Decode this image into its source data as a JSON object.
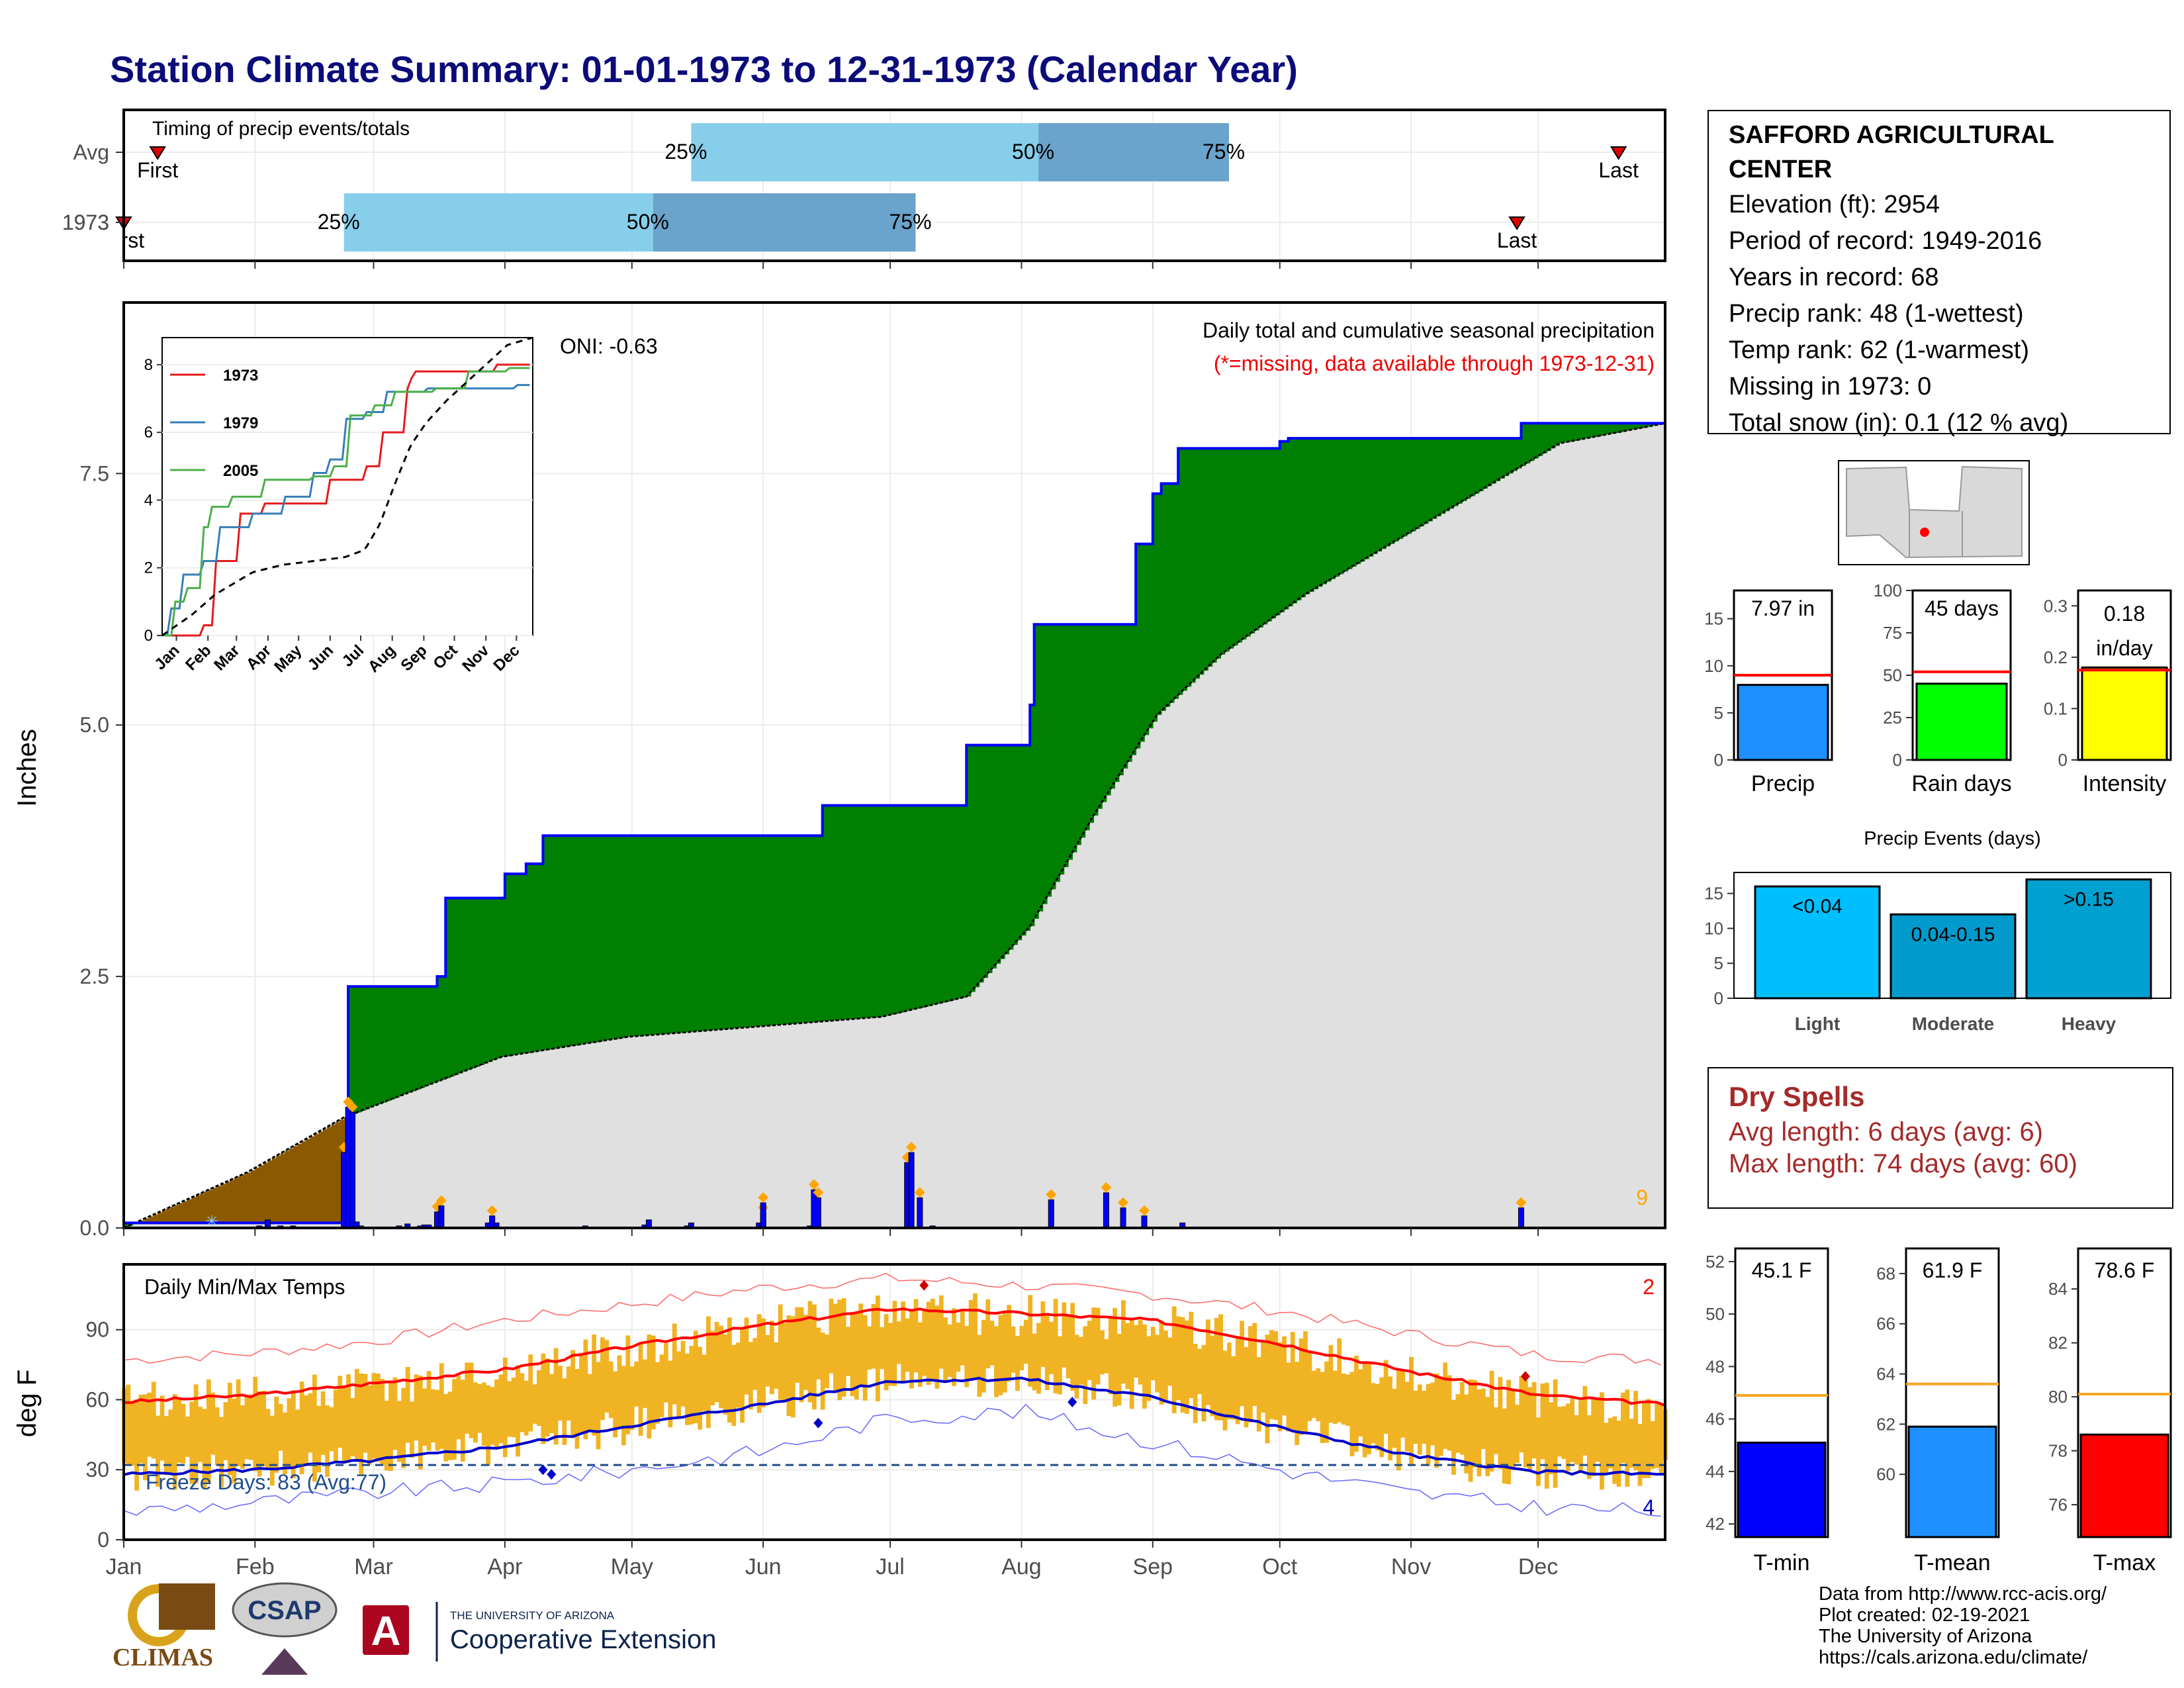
{
  "title": "Station Climate Summary: 01-01-1973 to 12-31-1973 (Calendar Year)",
  "timing": {
    "label": "Timing of precip events/totals",
    "rows": [
      {
        "label": "Avg",
        "first_doy": 9,
        "p25_doy": 135,
        "p50_doy": 217,
        "p75_doy": 262,
        "last_doy": 354,
        "first_label": "First",
        "last_label": "Last"
      },
      {
        "label": "1973",
        "first_doy": 1,
        "p25_doy": 53,
        "p50_doy": 126,
        "p75_doy": 188,
        "last_doy": 330,
        "first_label": "First",
        "last_label": "Last"
      }
    ],
    "pct_labels": [
      "25%",
      "50%",
      "75%"
    ]
  },
  "precip_panel": {
    "ylabel": "Inches",
    "yticks": [
      0.0,
      2.5,
      5.0,
      7.5
    ],
    "ylim": [
      0,
      9.2
    ],
    "oni": "ONI: -0.63",
    "note1": "Daily total and cumulative seasonal precipitation",
    "note2": "(*=missing, data available through 1973-12-31)",
    "corner_count": "9",
    "colors": {
      "wet": "#008000",
      "dry": "#8B5A00",
      "normal": "#e0e0e0",
      "line": "#0000ff",
      "event": "#ffa500"
    }
  },
  "inset": {
    "series": [
      {
        "name": "1973",
        "color": "#e41a1c"
      },
      {
        "name": "1979",
        "color": "#377eb8"
      },
      {
        "name": "2005",
        "color": "#4daf4a"
      }
    ],
    "yticks": [
      0,
      2,
      4,
      6,
      8
    ],
    "months": [
      "Jan",
      "Feb",
      "Mar",
      "Apr",
      "May",
      "Jun",
      "Jul",
      "Aug",
      "Sep",
      "Oct",
      "Nov",
      "Dec"
    ]
  },
  "temp_panel": {
    "label": "Daily Min/Max Temps",
    "ylabel": "deg F",
    "yticks": [
      0,
      30,
      60,
      90
    ],
    "ylim": [
      0,
      118
    ],
    "freeze_text": "Freeze Days: 83 (Avg:77)",
    "freeze_line": 32,
    "top_count": "2",
    "bottom_count": "4"
  },
  "months": [
    "Jan",
    "Feb",
    "Mar",
    "Apr",
    "May",
    "Jun",
    "Jul",
    "Aug",
    "Sep",
    "Oct",
    "Nov",
    "Dec"
  ],
  "station": {
    "name": "SAFFORD AGRICULTURAL CENTER",
    "elevation": "Elevation (ft): 2954",
    "period": "Period of record: 1949-2016",
    "years": "Years in record: 68",
    "precip_rank": "Precip rank: 48 (1-wettest)",
    "temp_rank": "Temp rank: 62 (1-warmest)",
    "missing": "Missing in 1973: 0",
    "snow": "Total snow (in): 0.1 (12 % avg)"
  },
  "mini_bars": [
    {
      "name": "Precip",
      "value": 7.97,
      "label": "7.97 in",
      "avg": 9.0,
      "ymax": 18,
      "ticks": [
        0,
        5,
        10,
        15
      ],
      "color": "#1e90ff",
      "ref_color": "#ff0000"
    },
    {
      "name": "Rain days",
      "value": 45,
      "label": "45 days",
      "avg": 52,
      "ymax": 100,
      "ticks": [
        0,
        25,
        50,
        75,
        100
      ],
      "color": "#00ff00",
      "ref_color": "#ff0000"
    },
    {
      "name": "Intensity",
      "value": 0.18,
      "label": "0.18 in/day",
      "avg": 0.175,
      "ymax": 0.33,
      "ticks": [
        0.0,
        0.1,
        0.2,
        0.3
      ],
      "color": "#ffff00",
      "ref_color": "#ff0000"
    }
  ],
  "events": {
    "title": "Precip Events (days)",
    "ticks": [
      0,
      5,
      10,
      15
    ],
    "bars": [
      {
        "category": "Light",
        "value": 16,
        "label": "<0.04",
        "color": "#00bfff"
      },
      {
        "category": "Moderate",
        "value": 12,
        "label": "0.04-0.15",
        "color": "#009acd"
      },
      {
        "category": "Heavy",
        "value": 17,
        "label": ">0.15",
        "color": "#00a0d0"
      }
    ]
  },
  "dry_spells": {
    "title": "Dry Spells",
    "avg": "Avg length: 6 days (avg: 6)",
    "max": "Max length: 74 days (avg: 60)"
  },
  "temp_bars": [
    {
      "name": "T-min",
      "value": 45.1,
      "label": "45.1 F",
      "avg": 46.9,
      "ylim": [
        41.5,
        52.5
      ],
      "ticks": [
        42,
        44,
        46,
        48,
        50,
        52
      ],
      "color": "#0000ff"
    },
    {
      "name": "T-mean",
      "value": 61.9,
      "label": "61.9 F",
      "avg": 63.6,
      "ylim": [
        57.5,
        69.0
      ],
      "ticks": [
        60,
        62,
        64,
        66,
        68
      ],
      "color": "#1e90ff"
    },
    {
      "name": "T-max",
      "value": 78.6,
      "label": "78.6 F",
      "avg": 80.1,
      "ylim": [
        74.8,
        85.5
      ],
      "ticks": [
        76,
        78,
        80,
        82,
        84
      ],
      "color": "#ff0000"
    }
  ],
  "credits": [
    "Data from http://www.rcc-acis.org/",
    "Plot created: 02-19-2021",
    "The University of Arizona",
    "https://cals.arizona.edu/climate/"
  ],
  "logos": {
    "climas": "CLIMAS",
    "csap": "CSAP",
    "ua_small": "THE UNIVERSITY OF ARIZONA",
    "ua_big": "Cooperative Extension"
  },
  "chart_data": [
    {
      "type": "area",
      "title": "Daily total and cumulative seasonal precipitation",
      "ylabel": "Inches",
      "ylim": [
        0,
        9.2
      ],
      "cumulative_1973": {
        "x_doy": [
          1,
          53,
          54,
          70,
          75,
          77,
          86,
          91,
          96,
          100,
          165,
          166,
          200,
          215,
          216,
          240,
          244,
          246,
          250,
          274,
          276,
          330,
          331,
          365
        ],
        "y": [
          0.05,
          0.05,
          2.4,
          2.4,
          2.5,
          3.28,
          3.28,
          3.52,
          3.62,
          3.9,
          3.9,
          4.2,
          4.8,
          5.2,
          6.0,
          6.8,
          7.3,
          7.4,
          7.75,
          7.82,
          7.85,
          7.85,
          8.0,
          8.0
        ]
      },
      "cumulative_normal": {
        "x_doy": [
          1,
          30,
          53,
          90,
          120,
          150,
          180,
          200,
          215,
          230,
          245,
          260,
          280,
          300,
          320,
          340,
          365
        ],
        "y": [
          0.0,
          0.55,
          1.1,
          1.7,
          1.9,
          2.0,
          2.1,
          2.3,
          3.0,
          4.1,
          5.1,
          5.7,
          6.3,
          6.8,
          7.3,
          7.8,
          8.0
        ]
      },
      "daily_precip": {
        "x_doy": [
          33,
          35,
          38,
          40,
          41,
          43,
          53,
          54,
          55,
          56,
          57,
          66,
          68,
          71,
          72,
          73,
          75,
          76,
          87,
          88,
          89,
          110,
          124,
          125,
          134,
          135,
          151,
          152,
          152,
          163,
          164,
          165,
          186,
          187,
          189,
          192,
          220,
          233,
          237,
          242,
          251,
          331
        ],
        "y": [
          0.02,
          0.08,
          0.02,
          0.01,
          0.02,
          0.01,
          0.75,
          1.2,
          1.15,
          0.06,
          0.02,
          0.02,
          0.04,
          0.02,
          0.03,
          0.03,
          0.16,
          0.22,
          0.05,
          0.12,
          0.05,
          0.02,
          0.03,
          0.08,
          0.02,
          0.05,
          0.05,
          0.15,
          0.25,
          0.02,
          0.38,
          0.3,
          0.65,
          0.75,
          0.3,
          0.02,
          0.28,
          0.35,
          0.2,
          0.12,
          0.05,
          0.2
        ]
      }
    },
    {
      "type": "line",
      "title": "Daily Min/Max Temps",
      "ylabel": "deg F",
      "ylim": [
        0,
        118
      ],
      "normal_max": {
        "x_doy": [
          1,
          32,
          60,
          91,
          121,
          152,
          182,
          213,
          244,
          274,
          305,
          335,
          365
        ],
        "y": [
          59,
          62,
          67,
          73,
          83,
          92,
          99,
          97,
          94,
          84,
          72,
          62,
          58
        ]
      },
      "normal_min": {
        "x_doy": [
          1,
          32,
          60,
          91,
          121,
          152,
          182,
          213,
          244,
          274,
          305,
          335,
          365
        ],
        "y": [
          28,
          30,
          34,
          40,
          49,
          58,
          68,
          69,
          61,
          48,
          36,
          29,
          28
        ]
      },
      "record_high": {
        "x_doy": [
          1,
          32,
          60,
          91,
          121,
          152,
          182,
          213,
          244,
          274,
          305,
          335,
          365
        ],
        "y": [
          77,
          80,
          85,
          94,
          101,
          108,
          112,
          109,
          105,
          98,
          88,
          79,
          77
        ]
      },
      "record_low": {
        "x_doy": [
          1,
          32,
          60,
          91,
          121,
          152,
          182,
          213,
          244,
          274,
          305,
          335,
          365
        ],
        "y": [
          12,
          16,
          20,
          24,
          30,
          38,
          52,
          55,
          42,
          30,
          20,
          14,
          12
        ]
      }
    }
  ]
}
